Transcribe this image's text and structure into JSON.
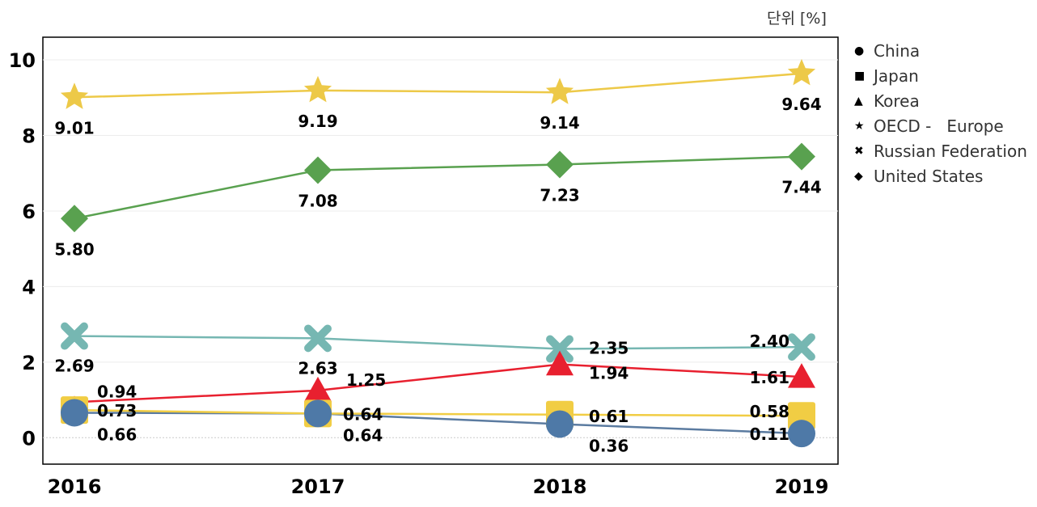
{
  "unit_label": "단위 [%]",
  "chart_data": {
    "type": "line",
    "x": [
      "2016",
      "2017",
      "2018",
      "2019"
    ],
    "ylim": [
      -0.7,
      10.6
    ],
    "yticks": [
      0,
      2,
      4,
      6,
      8,
      10
    ],
    "grid": true,
    "legend": "right",
    "series": [
      {
        "name": "China",
        "marker": "circle",
        "color": "#4e79a7",
        "values": [
          0.66,
          0.64,
          0.36,
          0.11
        ]
      },
      {
        "name": "Japan",
        "marker": "square",
        "color": "#f1cd44",
        "values": [
          0.73,
          0.64,
          0.61,
          0.58
        ]
      },
      {
        "name": "Korea",
        "marker": "triangle",
        "color": "#e8202f",
        "values": [
          0.94,
          1.25,
          1.94,
          1.61
        ]
      },
      {
        "name": "OECD -   Europe",
        "marker": "star",
        "color": "#edc948",
        "values": [
          9.01,
          9.19,
          9.14,
          9.64
        ]
      },
      {
        "name": "Russian Federation",
        "marker": "cross",
        "color": "#76b7b2",
        "values": [
          2.69,
          2.63,
          2.35,
          2.4
        ]
      },
      {
        "name": "United States",
        "marker": "diamond",
        "color": "#59a14f",
        "values": [
          5.8,
          7.08,
          7.23,
          7.44
        ]
      }
    ],
    "data_labels": [
      [
        "0.66",
        "0.64",
        "0.36",
        "0.11"
      ],
      [
        "0.73",
        "0.64",
        "0.61",
        "0.58"
      ],
      [
        "0.94",
        "1.25",
        "1.94",
        "1.61"
      ],
      [
        "9.01",
        "9.19",
        "9.14",
        "9.64"
      ],
      [
        "2.69",
        "2.63",
        "2.35",
        "2.40"
      ],
      [
        "5.80",
        "7.08",
        "7.23",
        "7.44"
      ]
    ]
  },
  "legend_items": [
    {
      "label": "China",
      "symbol": "●"
    },
    {
      "label": "Japan",
      "symbol": "■"
    },
    {
      "label": "Korea",
      "symbol": "▲"
    },
    {
      "label": "OECD -   Europe",
      "symbol": "★"
    },
    {
      "label": "Russian Federation",
      "symbol": "✖"
    },
    {
      "label": "United States",
      "symbol": "◆"
    }
  ]
}
